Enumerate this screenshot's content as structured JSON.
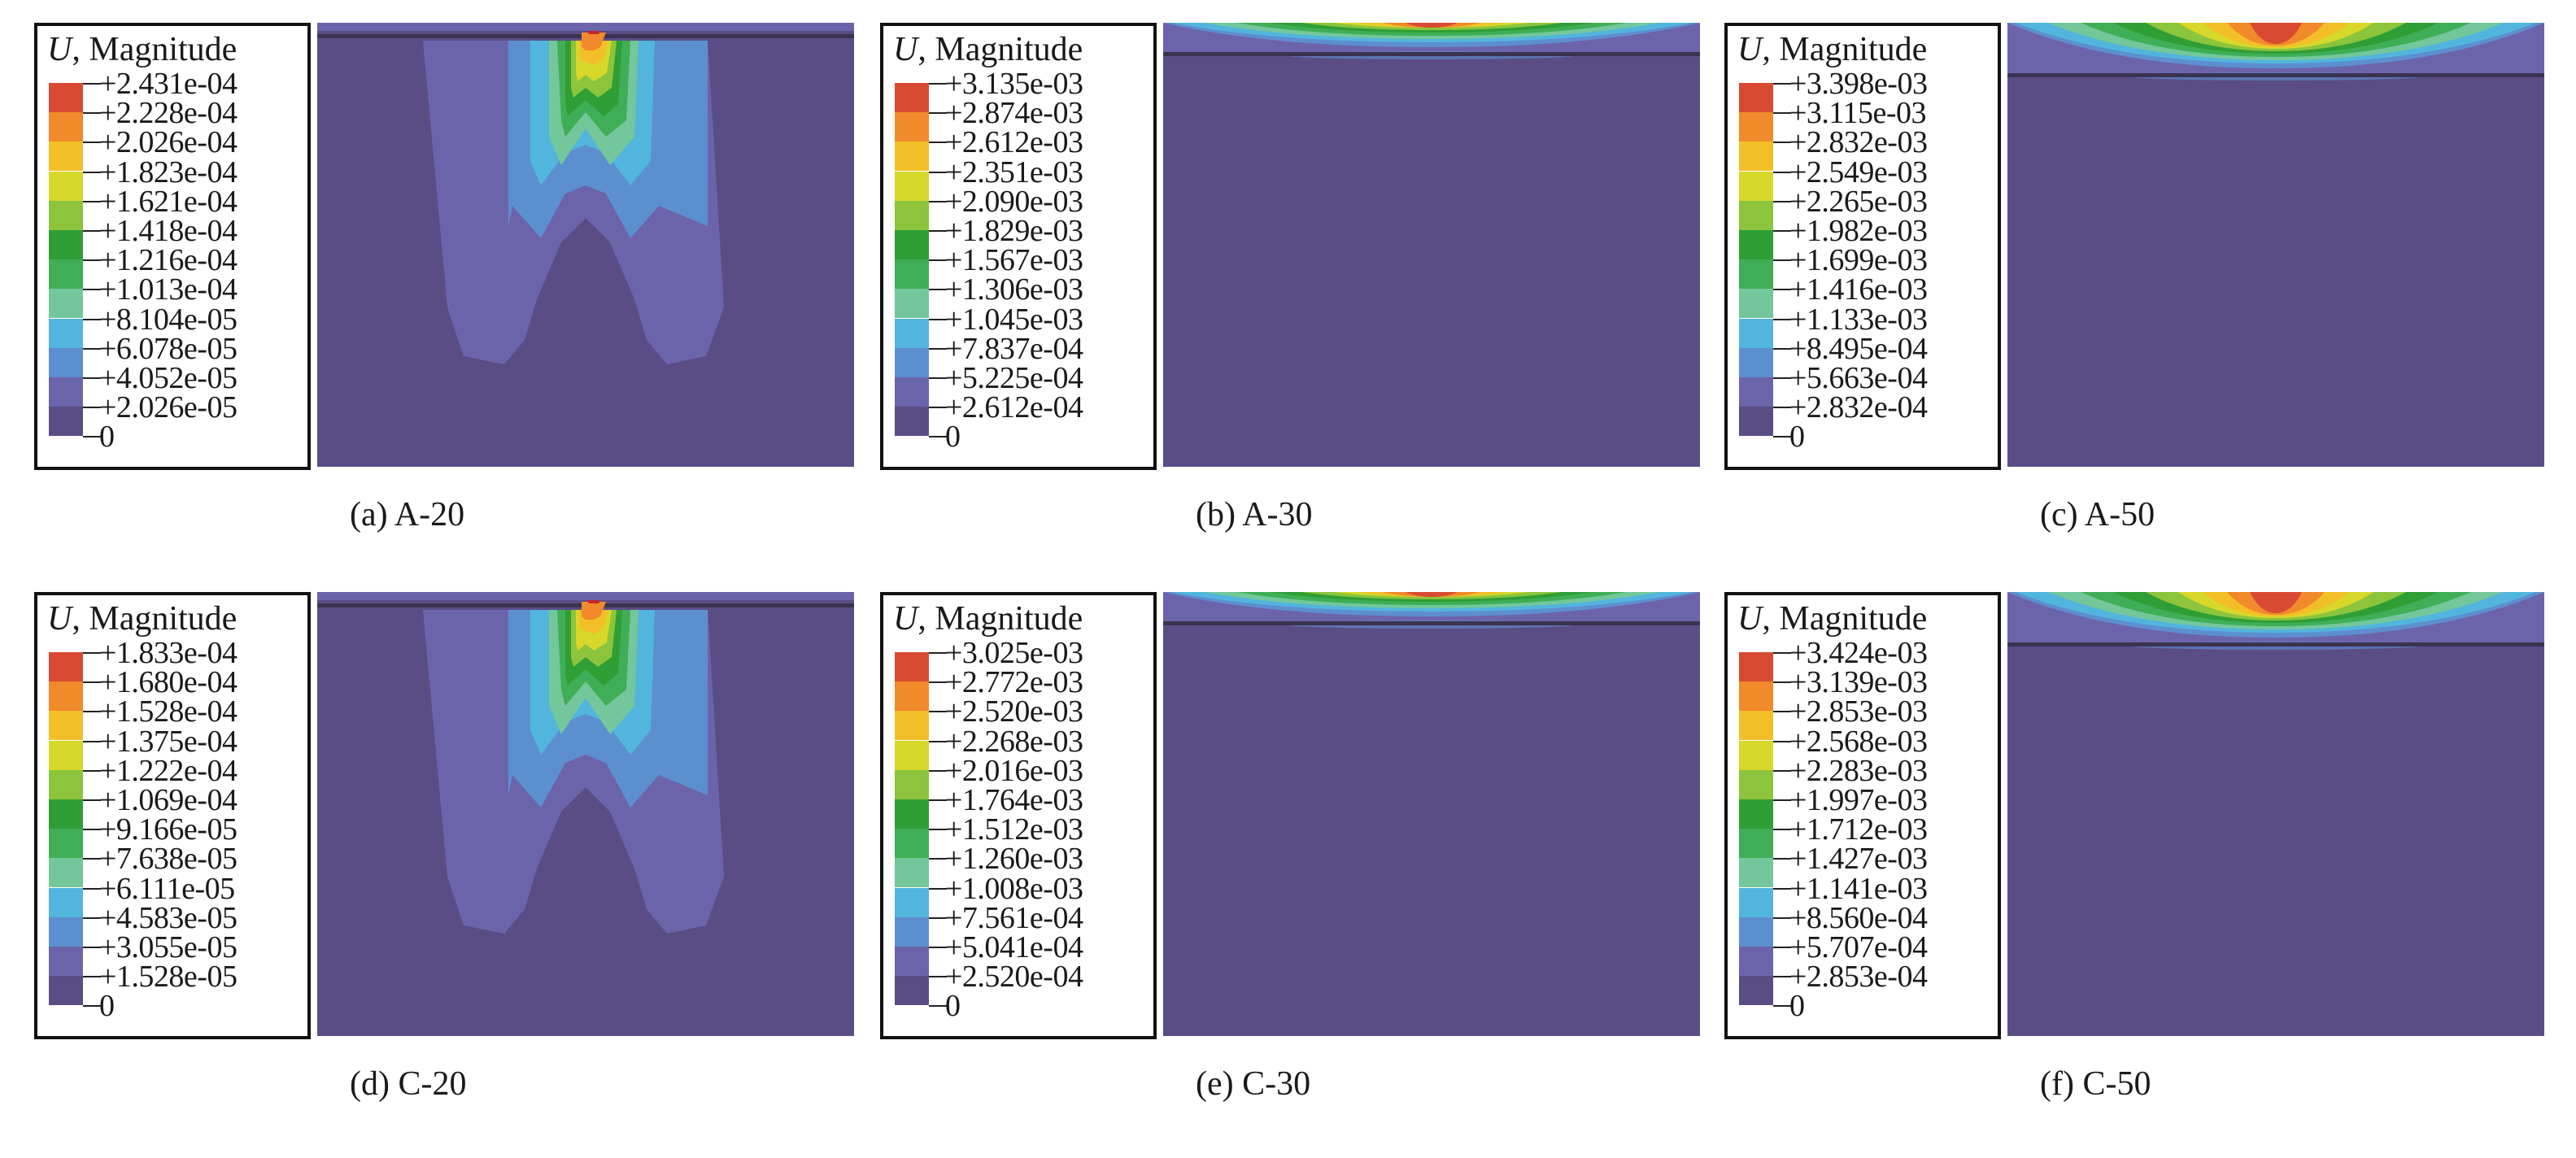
{
  "legend_title_var": "U",
  "legend_title_rest": ", Magnitude",
  "palette": [
    "#5a4d86",
    "#6c64ab",
    "#5c8fd0",
    "#52b5dd",
    "#73c79a",
    "#3fae56",
    "#2f9e35",
    "#8cc43c",
    "#d7d82a",
    "#f3bf28",
    "#f08a2a",
    "#d94a33",
    "#c7262f"
  ],
  "panels": [
    {
      "caption": "(a) A-20",
      "pattern": "deep",
      "labels": [
        "+2.431e-04",
        "+2.228e-04",
        "+2.026e-04",
        "+1.823e-04",
        "+1.621e-04",
        "+1.418e-04",
        "+1.216e-04",
        "+1.013e-04",
        "+8.104e-05",
        "+6.078e-05",
        "+4.052e-05",
        "+2.026e-05",
        "0"
      ]
    },
    {
      "caption": "(b) A-30",
      "pattern": "shallow",
      "labels": [
        "+3.135e-03",
        "+2.874e-03",
        "+2.612e-03",
        "+2.351e-03",
        "+2.090e-03",
        "+1.829e-03",
        "+1.567e-03",
        "+1.306e-03",
        "+1.045e-03",
        "+7.837e-04",
        "+5.225e-04",
        "+2.612e-04",
        "0"
      ]
    },
    {
      "caption": "(c) A-50",
      "pattern": "shallow",
      "labels": [
        "+3.398e-03",
        "+3.115e-03",
        "+2.832e-03",
        "+2.549e-03",
        "+2.265e-03",
        "+1.982e-03",
        "+1.699e-03",
        "+1.416e-03",
        "+1.133e-03",
        "+8.495e-04",
        "+5.663e-04",
        "+2.832e-04",
        "0"
      ]
    },
    {
      "caption": "(d) C-20",
      "pattern": "deep",
      "labels": [
        "+1.833e-04",
        "+1.680e-04",
        "+1.528e-04",
        "+1.375e-04",
        "+1.222e-04",
        "+1.069e-04",
        "+9.166e-05",
        "+7.638e-05",
        "+6.111e-05",
        "+4.583e-05",
        "+3.055e-05",
        "+1.528e-05",
        "0"
      ]
    },
    {
      "caption": "(e) C-30",
      "pattern": "shallow",
      "labels": [
        "+3.025e-03",
        "+2.772e-03",
        "+2.520e-03",
        "+2.268e-03",
        "+2.016e-03",
        "+1.764e-03",
        "+1.512e-03",
        "+1.260e-03",
        "+1.008e-03",
        "+7.561e-04",
        "+5.041e-04",
        "+2.520e-04",
        "0"
      ]
    },
    {
      "caption": "(f) C-50",
      "pattern": "shallow",
      "labels": [
        "+3.424e-03",
        "+3.139e-03",
        "+2.853e-03",
        "+2.568e-03",
        "+2.283e-03",
        "+1.997e-03",
        "+1.712e-03",
        "+1.427e-03",
        "+1.141e-03",
        "+8.560e-04",
        "+5.707e-04",
        "+2.853e-04",
        "0"
      ]
    }
  ]
}
